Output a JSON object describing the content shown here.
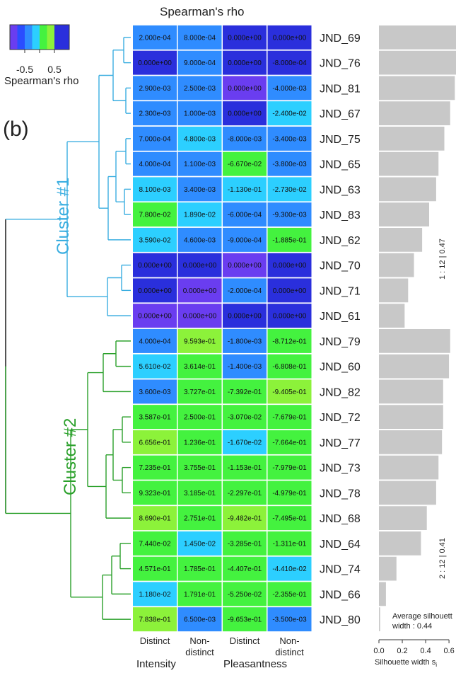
{
  "chart_data": {
    "type": "heatmap",
    "title": "Spearman's rho",
    "panel_label": "(b)",
    "colorbar": {
      "title": "Spearman's rho",
      "tick_labels": [
        "-0.5",
        "0.5"
      ],
      "range": [
        -1,
        1
      ],
      "colors": [
        "#6a3df0",
        "#2a4dff",
        "#2f8cff",
        "#2ccfff",
        "#44f23f",
        "#8cf23a",
        "#2a2fdc",
        "#2a2fdc"
      ]
    },
    "columns": [
      {
        "label": "Distinct",
        "group": "Intensity"
      },
      {
        "label": "Non-\ndistinct",
        "group": "Intensity"
      },
      {
        "label": "Distinct",
        "group": "Pleasantness"
      },
      {
        "label": "Non-\ndistinct",
        "group": "Pleasantness"
      }
    ],
    "column_groups": [
      "Intensity",
      "Pleasantness"
    ],
    "rows": [
      "JND_69",
      "JND_76",
      "JND_81",
      "JND_67",
      "JND_75",
      "JND_65",
      "JND_63",
      "JND_83",
      "JND_62",
      "JND_70",
      "JND_71",
      "JND_61",
      "JND_79",
      "JND_60",
      "JND_82",
      "JND_72",
      "JND_77",
      "JND_73",
      "JND_78",
      "JND_68",
      "JND_64",
      "JND_74",
      "JND_66",
      "JND_80"
    ],
    "cell_text": [
      [
        "2.000e-04",
        "8.000e-04",
        "0.000e+00",
        "0.000e+00"
      ],
      [
        "0.000e+00",
        "9.000e-04",
        "0.000e+00",
        "-8.000e-04"
      ],
      [
        "2.900e-03",
        "2.500e-03",
        "0.000e+00",
        "-4.000e-03"
      ],
      [
        "2.300e-03",
        "1.000e-03",
        "0.000e+00",
        "-2.400e-02"
      ],
      [
        "7.000e-04",
        "4.800e-03",
        "-8.000e-03",
        "-3.400e-03"
      ],
      [
        "4.000e-04",
        "1.100e-03",
        "-6.670e-02",
        "-3.800e-03"
      ],
      [
        "8.100e-03",
        "3.400e-03",
        "-1.130e-01",
        "-2.730e-02"
      ],
      [
        "7.800e-02",
        "1.890e-02",
        "-6.000e-04",
        "-9.300e-03"
      ],
      [
        "3.590e-02",
        "4.600e-03",
        "-9.000e-04",
        "-1.885e-01"
      ],
      [
        "0.000e+00",
        "0.000e+00",
        "0.000e+00",
        "0.000e+00"
      ],
      [
        "0.000e+00",
        "0.000e+00",
        "-2.000e-04",
        "0.000e+00"
      ],
      [
        "0.000e+00",
        "0.000e+00",
        "0.000e+00",
        "0.000e+00"
      ],
      [
        "4.000e-04",
        "9.593e-01",
        "-1.800e-03",
        "-8.712e-01"
      ],
      [
        "5.610e-02",
        "3.614e-01",
        "-1.400e-03",
        "-6.808e-01"
      ],
      [
        "3.600e-03",
        "3.727e-01",
        "-7.392e-01",
        "-9.405e-01"
      ],
      [
        "3.587e-01",
        "2.500e-01",
        "-3.070e-02",
        "-7.679e-01"
      ],
      [
        "6.656e-01",
        "1.236e-01",
        "-1.670e-02",
        "-7.664e-01"
      ],
      [
        "7.235e-01",
        "3.755e-01",
        "-1.153e-01",
        "-7.979e-01"
      ],
      [
        "9.323e-01",
        "3.185e-01",
        "-2.297e-01",
        "-4.979e-01"
      ],
      [
        "8.690e-01",
        "2.751e-01",
        "-9.482e-01",
        "-7.495e-01"
      ],
      [
        "7.440e-02",
        "1.450e-02",
        "-3.285e-01",
        "-1.311e-01"
      ],
      [
        "4.571e-01",
        "1.785e-01",
        "-4.407e-01",
        "-4.410e-02"
      ],
      [
        "1.180e-02",
        "1.791e-01",
        "-5.250e-02",
        "-2.355e-01"
      ],
      [
        "7.838e-01",
        "6.500e-03",
        "-9.653e-01",
        "-3.500e-03"
      ]
    ],
    "cell_colors": [
      [
        "#2f8cff",
        "#2f8cff",
        "#2a2fdc",
        "#2a2fdc"
      ],
      [
        "#2a2fdc",
        "#2f8cff",
        "#2a2fdc",
        "#2a2fdc"
      ],
      [
        "#2f8cff",
        "#2f8cff",
        "#6a3df0",
        "#2f8cff"
      ],
      [
        "#2f8cff",
        "#2f8cff",
        "#2a2fdc",
        "#2ccfff"
      ],
      [
        "#2f8cff",
        "#2ccfff",
        "#2f8cff",
        "#2f8cff"
      ],
      [
        "#2f8cff",
        "#2f8cff",
        "#44f23f",
        "#2f8cff"
      ],
      [
        "#2ccfff",
        "#2f8cff",
        "#2ccfff",
        "#2ccfff"
      ],
      [
        "#44f23f",
        "#2ccfff",
        "#2f8cff",
        "#2f8cff"
      ],
      [
        "#2ccfff",
        "#2f8cff",
        "#2f8cff",
        "#44f23f"
      ],
      [
        "#2a2fdc",
        "#2a2fdc",
        "#6a3df0",
        "#2a2fdc"
      ],
      [
        "#2a2fdc",
        "#6a3df0",
        "#2f8cff",
        "#2a2fdc"
      ],
      [
        "#6a3df0",
        "#6a3df0",
        "#2a2fdc",
        "#2a2fdc"
      ],
      [
        "#2f8cff",
        "#8cf23a",
        "#2f8cff",
        "#44f23f"
      ],
      [
        "#2ccfff",
        "#44f23f",
        "#2f8cff",
        "#44f23f"
      ],
      [
        "#2f8cff",
        "#44f23f",
        "#44f23f",
        "#8cf23a"
      ],
      [
        "#44f23f",
        "#44f23f",
        "#44f23f",
        "#44f23f"
      ],
      [
        "#8cf23a",
        "#44f23f",
        "#2ccfff",
        "#44f23f"
      ],
      [
        "#44f23f",
        "#44f23f",
        "#44f23f",
        "#44f23f"
      ],
      [
        "#44f23f",
        "#44f23f",
        "#44f23f",
        "#44f23f"
      ],
      [
        "#8cf23a",
        "#44f23f",
        "#8cf23a",
        "#44f23f"
      ],
      [
        "#44f23f",
        "#2ccfff",
        "#44f23f",
        "#44f23f"
      ],
      [
        "#44f23f",
        "#44f23f",
        "#44f23f",
        "#2ccfff"
      ],
      [
        "#2ccfff",
        "#44f23f",
        "#44f23f",
        "#44f23f"
      ],
      [
        "#8cf23a",
        "#2f8cff",
        "#44f23f",
        "#2f8cff"
      ]
    ],
    "clusters": [
      {
        "name": "Cluster #1",
        "color": "#3aaee0",
        "rows": [
          0,
          11
        ],
        "silhouette_label": "1 :  12  |  0.47"
      },
      {
        "name": "Cluster #2",
        "color": "#2aa02a",
        "rows": [
          12,
          23
        ],
        "silhouette_label": "2 :  12  |  0.41"
      }
    ],
    "silhouette": {
      "values": [
        0.66,
        0.66,
        0.65,
        0.61,
        0.56,
        0.51,
        0.49,
        0.43,
        0.37,
        0.3,
        0.25,
        0.22,
        0.61,
        0.6,
        0.55,
        0.55,
        0.54,
        0.51,
        0.49,
        0.41,
        0.36,
        0.15,
        0.06,
        0.01
      ],
      "xlim": [
        0,
        0.66
      ],
      "xticks": [
        "0.0",
        "0.2",
        "0.4",
        "0.6"
      ],
      "xlabel": "Silhouette width s",
      "xlabel_sub": "i",
      "avg_label_line1": "Average silhouett",
      "avg_label_line2": "width :  0.44",
      "bar_color": "#c8c8c8"
    }
  }
}
